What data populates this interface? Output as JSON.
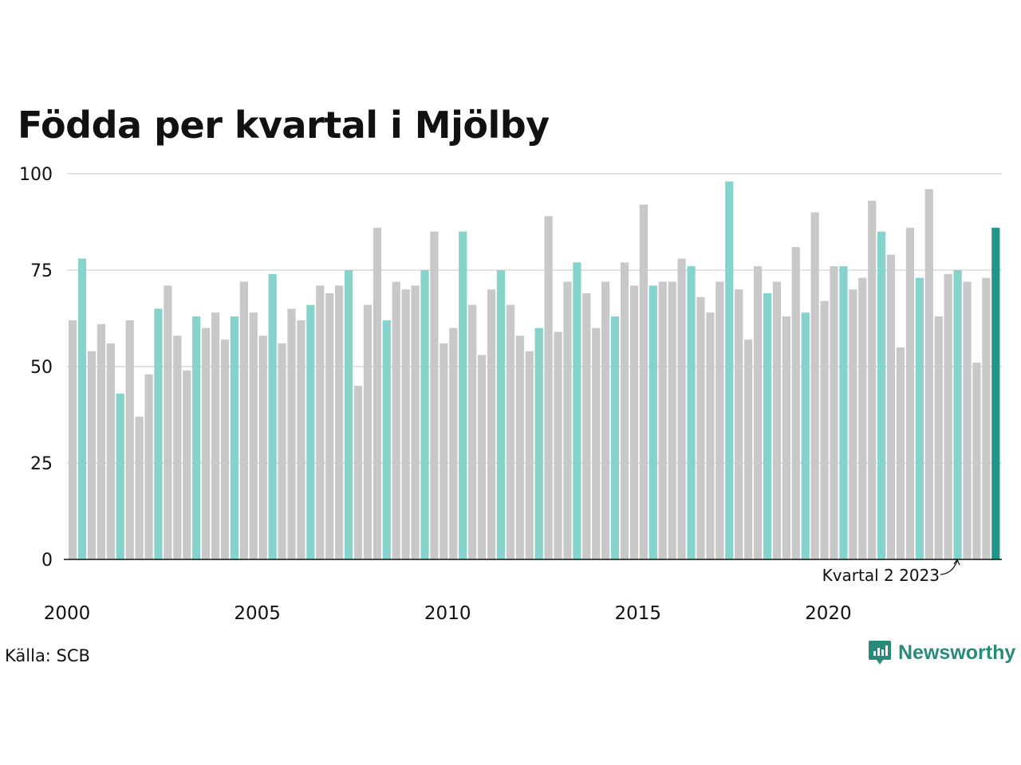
{
  "chart_data": {
    "type": "bar",
    "title": "Födda per kvartal i Mjölby",
    "xlabel": "",
    "ylabel": "",
    "ylim": [
      0,
      100
    ],
    "yticks": [
      "0",
      "25",
      "50",
      "75",
      "100"
    ],
    "xticks": [
      "2000",
      "2005",
      "2010",
      "2015",
      "2020"
    ],
    "grid": true,
    "colors": {
      "other": "#c8c8c8",
      "q2": "#86d3cb",
      "latest": "#1f9687",
      "axis": "#111111",
      "grid": "#e3e3e3"
    },
    "start": {
      "year": 2000,
      "quarter": 1
    },
    "values": [
      62,
      78,
      54,
      61,
      56,
      43,
      62,
      37,
      48,
      65,
      71,
      58,
      49,
      63,
      60,
      64,
      57,
      63,
      72,
      64,
      58,
      74,
      56,
      65,
      62,
      66,
      71,
      69,
      71,
      75,
      45,
      66,
      86,
      62,
      72,
      70,
      71,
      75,
      85,
      56,
      60,
      85,
      66,
      53,
      70,
      75,
      66,
      58,
      54,
      60,
      89,
      59,
      72,
      77,
      69,
      60,
      72,
      63,
      77,
      71,
      92,
      71,
      72,
      72,
      78,
      76,
      68,
      64,
      72,
      98,
      70,
      57,
      76,
      69,
      72,
      63,
      81,
      64,
      90,
      67,
      76,
      76,
      70,
      73,
      93,
      85,
      79,
      55,
      86,
      73,
      96,
      63,
      74,
      75,
      72,
      51,
      73,
      86
    ],
    "annotation": "Kvartal 2 2023"
  },
  "source": "Källa: SCB",
  "brand": {
    "name": "Newsworthy",
    "icon": "newsworthy-logo-icon"
  }
}
